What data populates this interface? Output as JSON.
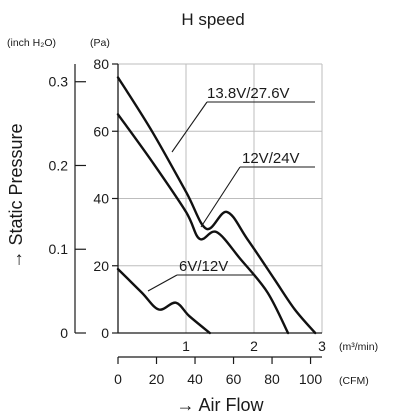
{
  "chart_data": {
    "type": "line",
    "title": "H speed",
    "xlabel": "→ Air Flow",
    "ylabel": "→ Static Pressure",
    "x_unit_primary": "(m³/min)",
    "x_unit_secondary": "(CFM)",
    "y_unit_primary": "(Pa)",
    "y_unit_secondary": "(inch H₂O)",
    "xlim": [
      0,
      3
    ],
    "ylim": [
      0,
      80
    ],
    "x_ticks_primary": [
      "1",
      "2",
      "3"
    ],
    "x_ticks_secondary": [
      "0",
      "20",
      "40",
      "60",
      "80",
      "100"
    ],
    "y_ticks_primary": [
      "80",
      "60",
      "40",
      "20",
      "0"
    ],
    "y_ticks_secondary": [
      "0.3",
      "0.2",
      "0.1",
      "0"
    ],
    "grid": true,
    "series": [
      {
        "name": "13.8V/27.6V",
        "points": [
          [
            0,
            76
          ],
          [
            0.5,
            60
          ],
          [
            1.0,
            42
          ],
          [
            1.3,
            31
          ],
          [
            1.6,
            36
          ],
          [
            1.9,
            28
          ],
          [
            2.3,
            16
          ],
          [
            2.6,
            7
          ],
          [
            2.9,
            0
          ]
        ]
      },
      {
        "name": "12V/24V",
        "points": [
          [
            0,
            65
          ],
          [
            0.5,
            51
          ],
          [
            1.0,
            36
          ],
          [
            1.2,
            28
          ],
          [
            1.45,
            30
          ],
          [
            1.8,
            22
          ],
          [
            2.2,
            12
          ],
          [
            2.5,
            0
          ]
        ]
      },
      {
        "name": "6V/12V",
        "points": [
          [
            0,
            19
          ],
          [
            0.35,
            12
          ],
          [
            0.6,
            7
          ],
          [
            0.85,
            9
          ],
          [
            1.05,
            5
          ],
          [
            1.35,
            0
          ]
        ]
      }
    ]
  }
}
